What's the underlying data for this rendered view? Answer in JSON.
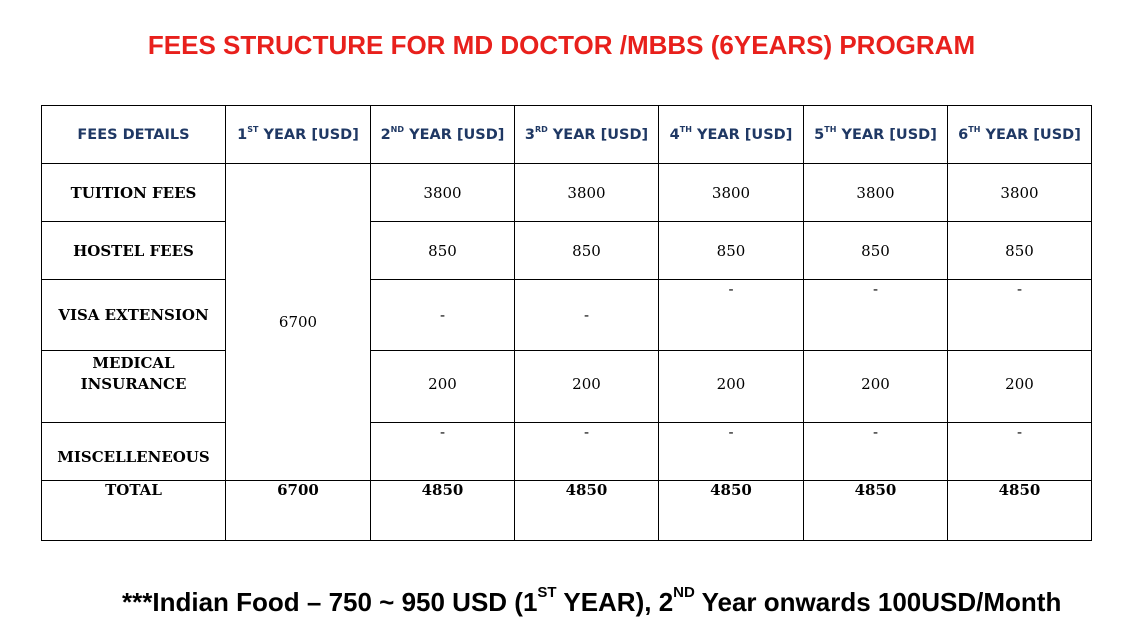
{
  "title": "FEES STRUCTURE FOR MD DOCTOR /MBBS (6YEARS) PROGRAM",
  "header": {
    "fees_details": "FEES DETAILS",
    "years": [
      {
        "num": "1",
        "sup": "ST",
        "rest": " YEAR [USD]"
      },
      {
        "num": "2",
        "sup": "ND",
        "rest": " YEAR [USD]"
      },
      {
        "num": "3",
        "sup": "RD",
        "rest": " YEAR [USD]"
      },
      {
        "num": "4",
        "sup": "TH",
        "rest": " YEAR [USD]"
      },
      {
        "num": "5",
        "sup": "TH",
        "rest": " YEAR [USD]"
      },
      {
        "num": "6",
        "sup": "TH",
        "rest": " YEAR [USD]"
      }
    ]
  },
  "first_year_combined": "6700",
  "rows": [
    {
      "label": "TUITION FEES",
      "values": [
        "3800",
        "3800",
        "3800",
        "3800",
        "3800"
      ]
    },
    {
      "label": "HOSTEL FEES",
      "values": [
        "850",
        "850",
        "850",
        "850",
        "850"
      ]
    },
    {
      "label": "VISA EXTENSION",
      "values": [
        "-",
        "-",
        "-",
        "-",
        "-"
      ]
    },
    {
      "label_line1": "MEDICAL",
      "label_line2": "INSURANCE",
      "values": [
        "200",
        "200",
        "200",
        "200",
        "200"
      ]
    },
    {
      "label": "MISCELLENEOUS",
      "values": [
        "-",
        "-",
        "-",
        "-",
        "-"
      ]
    }
  ],
  "total": {
    "label": "TOTAL",
    "values": [
      "6700",
      "4850",
      "4850",
      "4850",
      "4850",
      "4850"
    ]
  },
  "footnote": {
    "part1": "***Indian Food – 750 ~ 950 USD (1",
    "sup1": "ST",
    "part2": " YEAR), 2",
    "sup2": "ND",
    "part3": " Year onwards 100USD/Month"
  }
}
